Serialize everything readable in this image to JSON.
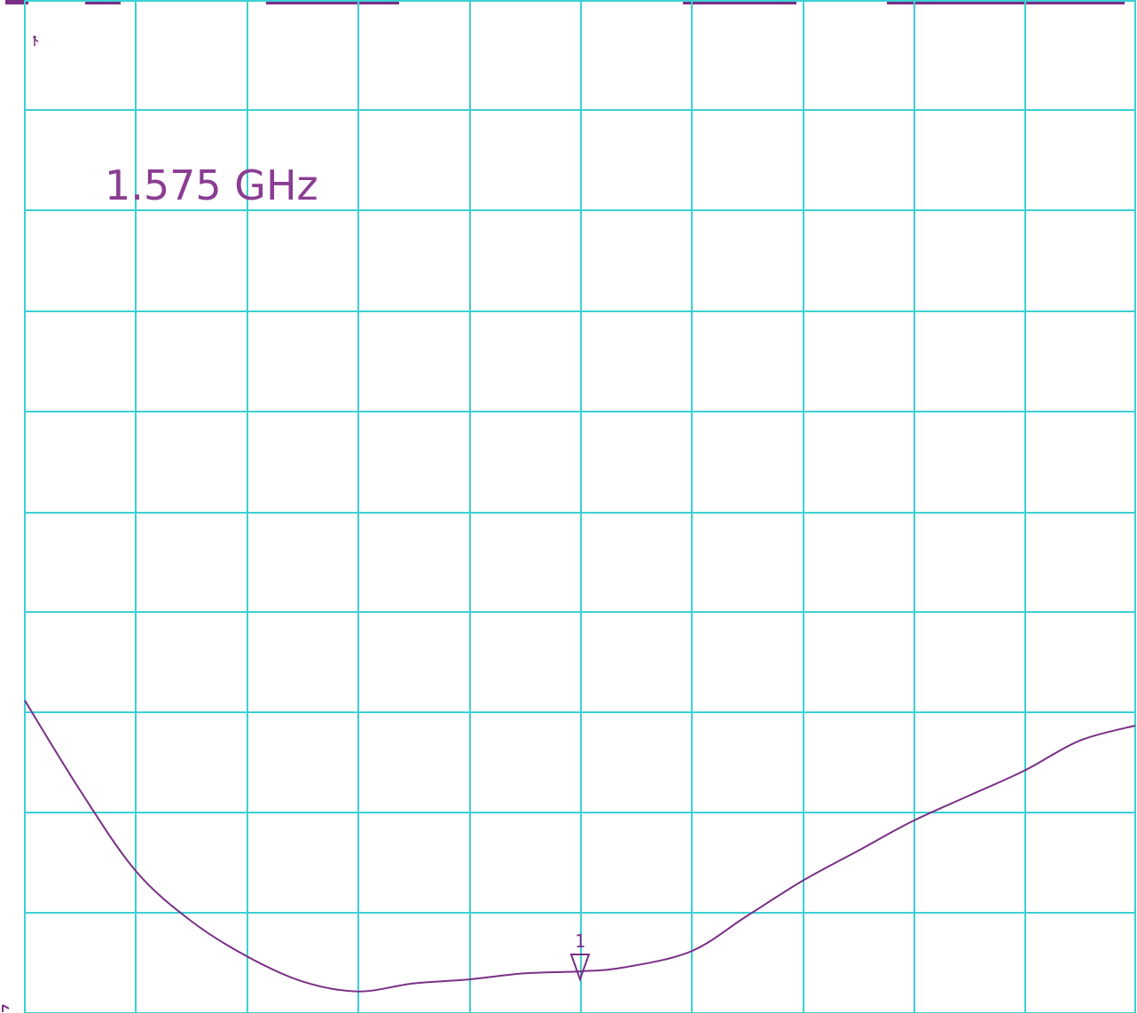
{
  "chart_data": {
    "type": "line",
    "annotation": "1.575 GHz",
    "marker": {
      "label": "1",
      "x_division": 5.0
    },
    "grid": {
      "x_divisions": 10,
      "y_divisions": 10
    },
    "trace_x_divisions": [
      0.0,
      0.5,
      1.0,
      1.5,
      2.0,
      2.5,
      3.0,
      3.5,
      4.0,
      4.5,
      5.0,
      5.4,
      6.0,
      6.5,
      7.0,
      7.5,
      8.0,
      8.5,
      9.0,
      9.5,
      10.0
    ],
    "trace_y_divisions": [
      3.0,
      2.1,
      1.3,
      0.8,
      0.45,
      0.2,
      0.1,
      0.18,
      0.22,
      0.28,
      0.3,
      0.34,
      0.5,
      0.85,
      1.2,
      1.5,
      1.8,
      2.05,
      2.3,
      2.6,
      2.75
    ],
    "colors": {
      "grid": "#3cd0d4",
      "trace": "#7a2f86",
      "background": "#ffffff"
    }
  }
}
